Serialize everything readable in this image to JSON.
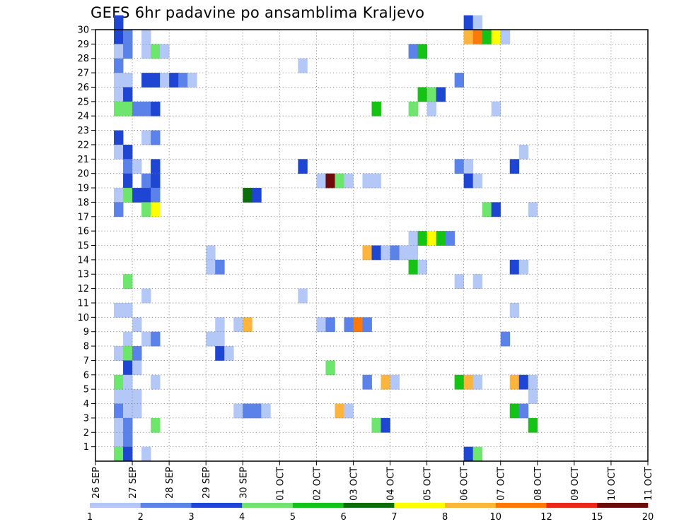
{
  "chart_data": {
    "type": "heatmap",
    "title": "GEFS 6hr padavine po ansamblima Kraljevo",
    "y_ticks": [
      1,
      2,
      3,
      4,
      5,
      6,
      7,
      8,
      9,
      10,
      11,
      12,
      13,
      14,
      15,
      16,
      17,
      18,
      19,
      20,
      21,
      22,
      23,
      24,
      25,
      26,
      27,
      28,
      29,
      30
    ],
    "y_range": [
      0,
      30
    ],
    "x_range": [
      0,
      15
    ],
    "x_tick_labels": [
      "26 SEP",
      "27 SEP",
      "28 SEP",
      "29 SEP",
      "30 SEP",
      "01 OCT",
      "02 OCT",
      "03 OCT",
      "04 OCT",
      "05 OCT",
      "06 OCT",
      "07 OCT",
      "08 OCT",
      "09 OCT",
      "10 OCT",
      "11 OCT"
    ],
    "grid": true,
    "colorbar": {
      "labels": [
        "1",
        "2",
        "3",
        "4",
        "5",
        "6",
        "7",
        "8",
        "10",
        "12",
        "15",
        "20"
      ],
      "colors": [
        "#b4c8f8",
        "#5a82e8",
        "#1e46d2",
        "#6ee66e",
        "#14c314",
        "#0a6e0a",
        "#ffff00",
        "#ffb43c",
        "#ff780a",
        "#e62814",
        "#6e0a0a"
      ]
    },
    "cells": [
      {
        "member": 30,
        "col": 2,
        "level": 3
      },
      {
        "member": 29,
        "col": 2,
        "level": 3
      },
      {
        "member": 29,
        "col": 3,
        "level": 2
      },
      {
        "member": 29,
        "col": 5,
        "level": 1
      },
      {
        "member": 28,
        "col": 2,
        "level": 1
      },
      {
        "member": 28,
        "col": 3,
        "level": 2
      },
      {
        "member": 28,
        "col": 5,
        "level": 1
      },
      {
        "member": 28,
        "col": 6,
        "level": 4
      },
      {
        "member": 28,
        "col": 7,
        "level": 1
      },
      {
        "member": 27,
        "col": 2,
        "level": 2
      },
      {
        "member": 26,
        "col": 2,
        "level": 1
      },
      {
        "member": 26,
        "col": 3,
        "level": 1
      },
      {
        "member": 26,
        "col": 5,
        "level": 3
      },
      {
        "member": 26,
        "col": 6,
        "level": 3
      },
      {
        "member": 26,
        "col": 7,
        "level": 1
      },
      {
        "member": 26,
        "col": 8,
        "level": 3
      },
      {
        "member": 26,
        "col": 9,
        "level": 2
      },
      {
        "member": 26,
        "col": 10,
        "level": 1
      },
      {
        "member": 25,
        "col": 2,
        "level": 1
      },
      {
        "member": 25,
        "col": 3,
        "level": 3
      },
      {
        "member": 24,
        "col": 2,
        "level": 4
      },
      {
        "member": 24,
        "col": 3,
        "level": 4
      },
      {
        "member": 24,
        "col": 4,
        "level": 2
      },
      {
        "member": 24,
        "col": 5,
        "level": 2
      },
      {
        "member": 24,
        "col": 6,
        "level": 3
      },
      {
        "member": 22,
        "col": 2,
        "level": 3
      },
      {
        "member": 22,
        "col": 5,
        "level": 1
      },
      {
        "member": 22,
        "col": 6,
        "level": 2
      },
      {
        "member": 21,
        "col": 2,
        "level": 1
      },
      {
        "member": 21,
        "col": 3,
        "level": 3
      },
      {
        "member": 20,
        "col": 3,
        "level": 2
      },
      {
        "member": 20,
        "col": 4,
        "level": 1
      },
      {
        "member": 20,
        "col": 6,
        "level": 3
      },
      {
        "member": 19,
        "col": 3,
        "level": 3
      },
      {
        "member": 19,
        "col": 5,
        "level": 2
      },
      {
        "member": 19,
        "col": 6,
        "level": 3
      },
      {
        "member": 18,
        "col": 2,
        "level": 1
      },
      {
        "member": 18,
        "col": 3,
        "level": 4
      },
      {
        "member": 18,
        "col": 4,
        "level": 3
      },
      {
        "member": 18,
        "col": 5,
        "level": 3
      },
      {
        "member": 18,
        "col": 6,
        "level": 2
      },
      {
        "member": 17,
        "col": 2,
        "level": 2
      },
      {
        "member": 17,
        "col": 5,
        "level": 4
      },
      {
        "member": 17,
        "col": 6,
        "level": 7
      },
      {
        "member": 12,
        "col": 3,
        "level": 4
      },
      {
        "member": 11,
        "col": 5,
        "level": 1
      },
      {
        "member": 10,
        "col": 2,
        "level": 1
      },
      {
        "member": 10,
        "col": 3,
        "level": 1
      },
      {
        "member": 9,
        "col": 4,
        "level": 1
      },
      {
        "member": 8,
        "col": 3,
        "level": 1
      },
      {
        "member": 8,
        "col": 5,
        "level": 1
      },
      {
        "member": 8,
        "col": 6,
        "level": 2
      },
      {
        "member": 7,
        "col": 2,
        "level": 1
      },
      {
        "member": 7,
        "col": 3,
        "level": 4
      },
      {
        "member": 7,
        "col": 4,
        "level": 2
      },
      {
        "member": 6,
        "col": 3,
        "level": 3
      },
      {
        "member": 6,
        "col": 4,
        "level": 1
      },
      {
        "member": 5,
        "col": 2,
        "level": 4
      },
      {
        "member": 5,
        "col": 3,
        "level": 1
      },
      {
        "member": 5,
        "col": 6,
        "level": 1
      },
      {
        "member": 4,
        "col": 2,
        "level": 1
      },
      {
        "member": 4,
        "col": 3,
        "level": 1
      },
      {
        "member": 4,
        "col": 4,
        "level": 1
      },
      {
        "member": 3,
        "col": 2,
        "level": 2
      },
      {
        "member": 3,
        "col": 3,
        "level": 1
      },
      {
        "member": 3,
        "col": 4,
        "level": 1
      },
      {
        "member": 2,
        "col": 2,
        "level": 1
      },
      {
        "member": 2,
        "col": 3,
        "level": 2
      },
      {
        "member": 2,
        "col": 6,
        "level": 4
      },
      {
        "member": 1,
        "col": 2,
        "level": 1
      },
      {
        "member": 1,
        "col": 3,
        "level": 2
      },
      {
        "member": 0,
        "col": 2,
        "level": 4
      },
      {
        "member": 0,
        "col": 3,
        "level": 3
      },
      {
        "member": 0,
        "col": 5,
        "level": 1
      },
      {
        "member": 14,
        "col": 12,
        "level": 1
      },
      {
        "member": 13,
        "col": 12,
        "level": 1
      },
      {
        "member": 13,
        "col": 13,
        "level": 2
      },
      {
        "member": 9,
        "col": 13,
        "level": 1
      },
      {
        "member": 8,
        "col": 12,
        "level": 1
      },
      {
        "member": 8,
        "col": 13,
        "level": 1
      },
      {
        "member": 7,
        "col": 13,
        "level": 3
      },
      {
        "member": 7,
        "col": 14,
        "level": 1
      },
      {
        "member": 18,
        "col": 16,
        "level": 6
      },
      {
        "member": 18,
        "col": 17,
        "level": 3
      },
      {
        "member": 9,
        "col": 15,
        "level": 1
      },
      {
        "member": 9,
        "col": 16,
        "level": 8
      },
      {
        "member": 3,
        "col": 15,
        "level": 1
      },
      {
        "member": 3,
        "col": 16,
        "level": 2
      },
      {
        "member": 3,
        "col": 17,
        "level": 2
      },
      {
        "member": 3,
        "col": 18,
        "level": 1
      },
      {
        "member": 27,
        "col": 22,
        "level": 1
      },
      {
        "member": 20,
        "col": 22,
        "level": 3
      },
      {
        "member": 11,
        "col": 22,
        "level": 1
      },
      {
        "member": 19,
        "col": 24,
        "level": 1
      },
      {
        "member": 19,
        "col": 25,
        "level": 11
      },
      {
        "member": 19,
        "col": 26,
        "level": 4
      },
      {
        "member": 19,
        "col": 27,
        "level": 1
      },
      {
        "member": 9,
        "col": 24,
        "level": 1
      },
      {
        "member": 9,
        "col": 25,
        "level": 2
      },
      {
        "member": 9,
        "col": 27,
        "level": 2
      },
      {
        "member": 9,
        "col": 28,
        "level": 9
      },
      {
        "member": 9,
        "col": 29,
        "level": 2
      },
      {
        "member": 6,
        "col": 25,
        "level": 4
      },
      {
        "member": 3,
        "col": 26,
        "level": 8
      },
      {
        "member": 3,
        "col": 27,
        "level": 1
      },
      {
        "member": 5,
        "col": 29,
        "level": 2
      },
      {
        "member": 24,
        "col": 30,
        "level": 5
      },
      {
        "member": 19,
        "col": 29,
        "level": 1
      },
      {
        "member": 19,
        "col": 30,
        "level": 1
      },
      {
        "member": 14,
        "col": 29,
        "level": 8
      },
      {
        "member": 14,
        "col": 30,
        "level": 3
      },
      {
        "member": 14,
        "col": 31,
        "level": 1
      },
      {
        "member": 14,
        "col": 32,
        "level": 2
      },
      {
        "member": 14,
        "col": 33,
        "level": 1
      },
      {
        "member": 14,
        "col": 34,
        "level": 1
      },
      {
        "member": 13,
        "col": 34,
        "level": 5
      },
      {
        "member": 13,
        "col": 35,
        "level": 1
      },
      {
        "member": 5,
        "col": 31,
        "level": 8
      },
      {
        "member": 5,
        "col": 32,
        "level": 1
      },
      {
        "member": 2,
        "col": 30,
        "level": 4
      },
      {
        "member": 2,
        "col": 31,
        "level": 3
      },
      {
        "member": 28,
        "col": 34,
        "level": 2
      },
      {
        "member": 28,
        "col": 35,
        "level": 5
      },
      {
        "member": 24,
        "col": 34,
        "level": 4
      },
      {
        "member": 24,
        "col": 36,
        "level": 1
      },
      {
        "member": 25,
        "col": 35,
        "level": 5
      },
      {
        "member": 25,
        "col": 36,
        "level": 4
      },
      {
        "member": 25,
        "col": 37,
        "level": 3
      },
      {
        "member": 15,
        "col": 34,
        "level": 1
      },
      {
        "member": 15,
        "col": 35,
        "level": 5
      },
      {
        "member": 15,
        "col": 36,
        "level": 7
      },
      {
        "member": 15,
        "col": 37,
        "level": 5
      },
      {
        "member": 15,
        "col": 38,
        "level": 2
      },
      {
        "member": 26,
        "col": 39,
        "level": 2
      },
      {
        "member": 30,
        "col": 40,
        "level": 3
      },
      {
        "member": 30,
        "col": 41,
        "level": 1
      },
      {
        "member": 29,
        "col": 40,
        "level": 8
      },
      {
        "member": 29,
        "col": 41,
        "level": 9
      },
      {
        "member": 29,
        "col": 42,
        "level": 5
      },
      {
        "member": 29,
        "col": 43,
        "level": 7
      },
      {
        "member": 29,
        "col": 44,
        "level": 1
      },
      {
        "member": 24,
        "col": 43,
        "level": 1
      },
      {
        "member": 20,
        "col": 39,
        "level": 2
      },
      {
        "member": 20,
        "col": 40,
        "level": 1
      },
      {
        "member": 19,
        "col": 40,
        "level": 3
      },
      {
        "member": 19,
        "col": 41,
        "level": 1
      },
      {
        "member": 17,
        "col": 42,
        "level": 4
      },
      {
        "member": 17,
        "col": 43,
        "level": 3
      },
      {
        "member": 17,
        "col": 47,
        "level": 1
      },
      {
        "member": 12,
        "col": 39,
        "level": 1
      },
      {
        "member": 12,
        "col": 41,
        "level": 1
      },
      {
        "member": 21,
        "col": 46,
        "level": 1
      },
      {
        "member": 20,
        "col": 45,
        "level": 3
      },
      {
        "member": 13,
        "col": 45,
        "level": 3
      },
      {
        "member": 13,
        "col": 46,
        "level": 1
      },
      {
        "member": 10,
        "col": 45,
        "level": 1
      },
      {
        "member": 8,
        "col": 44,
        "level": 2
      },
      {
        "member": 5,
        "col": 39,
        "level": 5
      },
      {
        "member": 5,
        "col": 40,
        "level": 8
      },
      {
        "member": 5,
        "col": 41,
        "level": 1
      },
      {
        "member": 5,
        "col": 45,
        "level": 8
      },
      {
        "member": 5,
        "col": 46,
        "level": 3
      },
      {
        "member": 5,
        "col": 47,
        "level": 1
      },
      {
        "member": 4,
        "col": 47,
        "level": 1
      },
      {
        "member": 3,
        "col": 45,
        "level": 5
      },
      {
        "member": 3,
        "col": 46,
        "level": 2
      },
      {
        "member": 2,
        "col": 47,
        "level": 5
      },
      {
        "member": 0,
        "col": 40,
        "level": 3
      },
      {
        "member": 0,
        "col": 41,
        "level": 4
      }
    ]
  }
}
